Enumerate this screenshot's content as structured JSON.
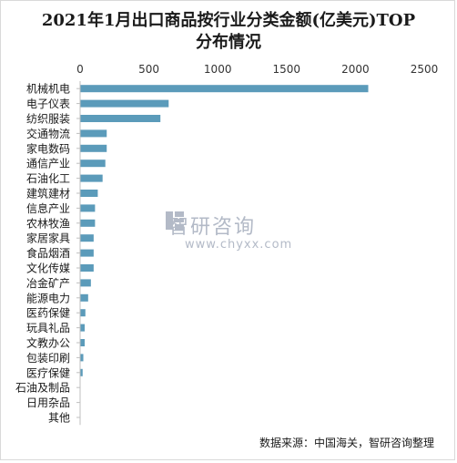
{
  "chart_data": {
    "type": "bar",
    "orientation": "horizontal",
    "title": "2021年1月出口商品按行业分类金额(亿美元)TOP分布情况",
    "categories": [
      "机械机电",
      "电子仪表",
      "纺织服装",
      "交通物流",
      "家电数码",
      "通信产业",
      "石油化工",
      "建筑建材",
      "信息产业",
      "农林牧渔",
      "家居家具",
      "食品烟酒",
      "文化传媒",
      "冶金矿产",
      "能源电力",
      "医药保健",
      "玩具礼品",
      "文教办公",
      "包装印刷",
      "医疗保健",
      "石油及制品",
      "日用杂品",
      "其他"
    ],
    "values": [
      2090,
      640,
      580,
      190,
      190,
      180,
      160,
      125,
      105,
      105,
      95,
      95,
      95,
      75,
      55,
      35,
      30,
      30,
      20,
      15,
      0,
      0,
      0
    ],
    "xlim": [
      0,
      2500
    ],
    "xticks": [
      "0",
      "500",
      "1000",
      "1500",
      "2000",
      "2500"
    ],
    "axis_position": "top",
    "grid": false,
    "legend": "none",
    "bar_color": "#5b9bba"
  },
  "watermark": {
    "name": "智研咨询",
    "url": "www.chyxx.com"
  },
  "source": "数据来源：中国海关，智研咨询整理"
}
